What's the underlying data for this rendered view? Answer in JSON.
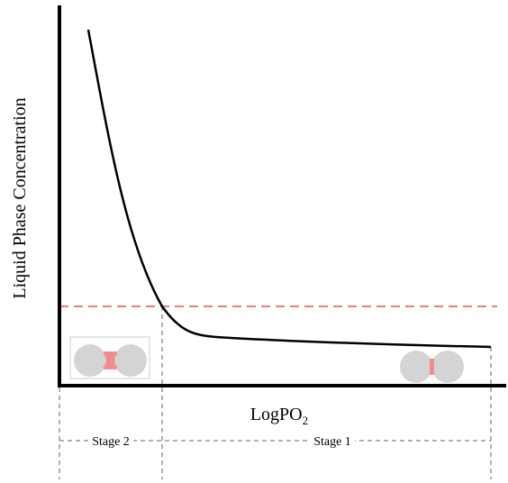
{
  "axes": {
    "y_label": "Liquid Phase Concentration",
    "x_label": "LogPO",
    "x_label_subscript": "2"
  },
  "stages": [
    {
      "label": "Stage 2"
    },
    {
      "label": "Stage 1"
    }
  ]
}
